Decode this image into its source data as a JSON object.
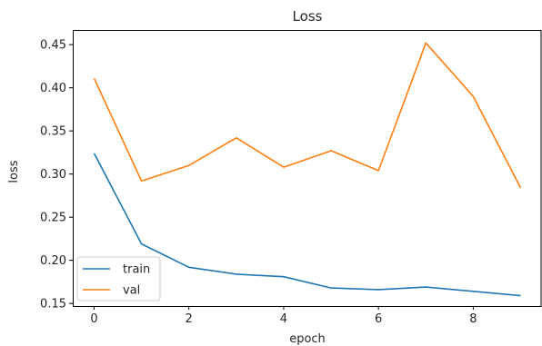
{
  "chart_data": {
    "type": "line",
    "title": "Loss",
    "xlabel": "epoch",
    "ylabel": "loss",
    "x": [
      0,
      1,
      2,
      3,
      4,
      5,
      6,
      7,
      8,
      9
    ],
    "xlim": [
      -0.45,
      9.45
    ],
    "ylim": [
      0.147,
      0.467
    ],
    "xticks": [
      0,
      2,
      4,
      6,
      8
    ],
    "yticks": [
      0.15,
      0.2,
      0.25,
      0.3,
      0.35,
      0.4,
      0.45
    ],
    "ytick_labels": [
      "0.15",
      "0.20",
      "0.25",
      "0.30",
      "0.35",
      "0.40",
      "0.45"
    ],
    "grid": false,
    "legend_position": "lower-left",
    "series": [
      {
        "name": "train",
        "color": "#1f77b4",
        "values": [
          0.324,
          0.219,
          0.192,
          0.184,
          0.181,
          0.168,
          0.166,
          0.169,
          0.164,
          0.159
        ]
      },
      {
        "name": "val",
        "color": "#ff7f0e",
        "values": [
          0.411,
          0.292,
          0.31,
          0.342,
          0.308,
          0.327,
          0.304,
          0.452,
          0.39,
          0.284
        ]
      }
    ]
  }
}
